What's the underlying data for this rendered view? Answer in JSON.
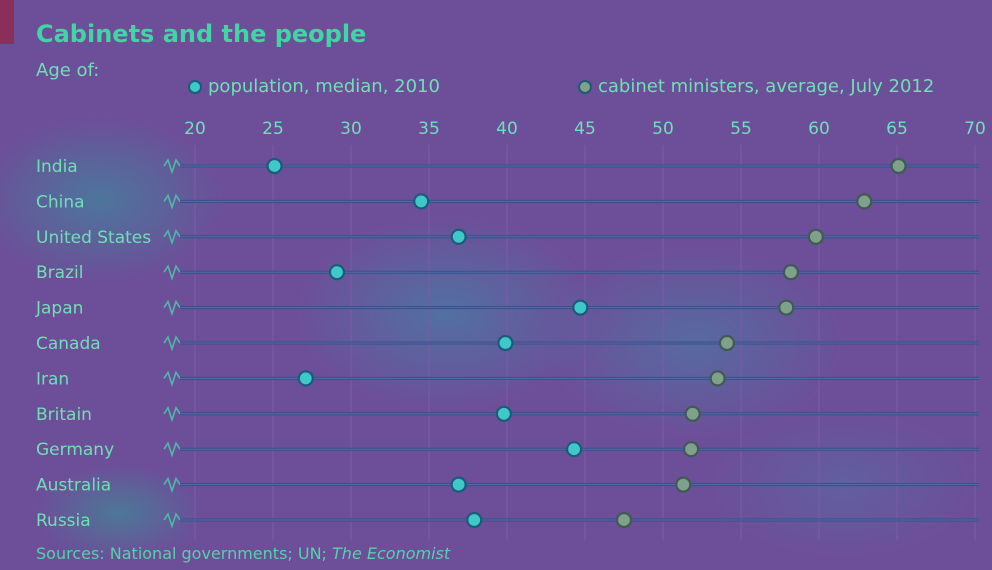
{
  "title": "Cabinets and the people",
  "subtitle": "Age of:",
  "legend": {
    "population": "population, median, 2010",
    "ministers": "cabinet ministers, average, July 2012"
  },
  "source": {
    "prefix": "Sources: National governments; UN; ",
    "italic": "The Economist"
  },
  "colors": {
    "population_marker": "#3ec8c8",
    "ministers_marker": "#7fa08a",
    "row_line": "#3a4f86",
    "text": "#6fe0b5"
  },
  "chart_data": {
    "type": "scatter",
    "title": "Cabinets and the people",
    "xlabel": "",
    "ylabel": "",
    "xlim": [
      20,
      70
    ],
    "xticks": [
      20,
      25,
      30,
      35,
      40,
      45,
      50,
      55,
      60,
      65,
      70
    ],
    "axis_break": "broken axis at left (values start at 20)",
    "grid": true,
    "legend_placement": "top",
    "categories": [
      "India",
      "China",
      "United States",
      "Brazil",
      "Japan",
      "Canada",
      "Iran",
      "Britain",
      "Germany",
      "Australia",
      "Russia"
    ],
    "series": [
      {
        "name": "population, median, 2010",
        "values": [
          25.1,
          34.5,
          36.9,
          29.1,
          44.7,
          39.9,
          27.1,
          39.8,
          44.3,
          36.9,
          37.9
        ]
      },
      {
        "name": "cabinet ministers, average, July 2012",
        "values": [
          65.1,
          62.9,
          59.8,
          58.2,
          57.9,
          54.1,
          53.5,
          51.9,
          51.8,
          51.3,
          47.5
        ]
      }
    ]
  }
}
